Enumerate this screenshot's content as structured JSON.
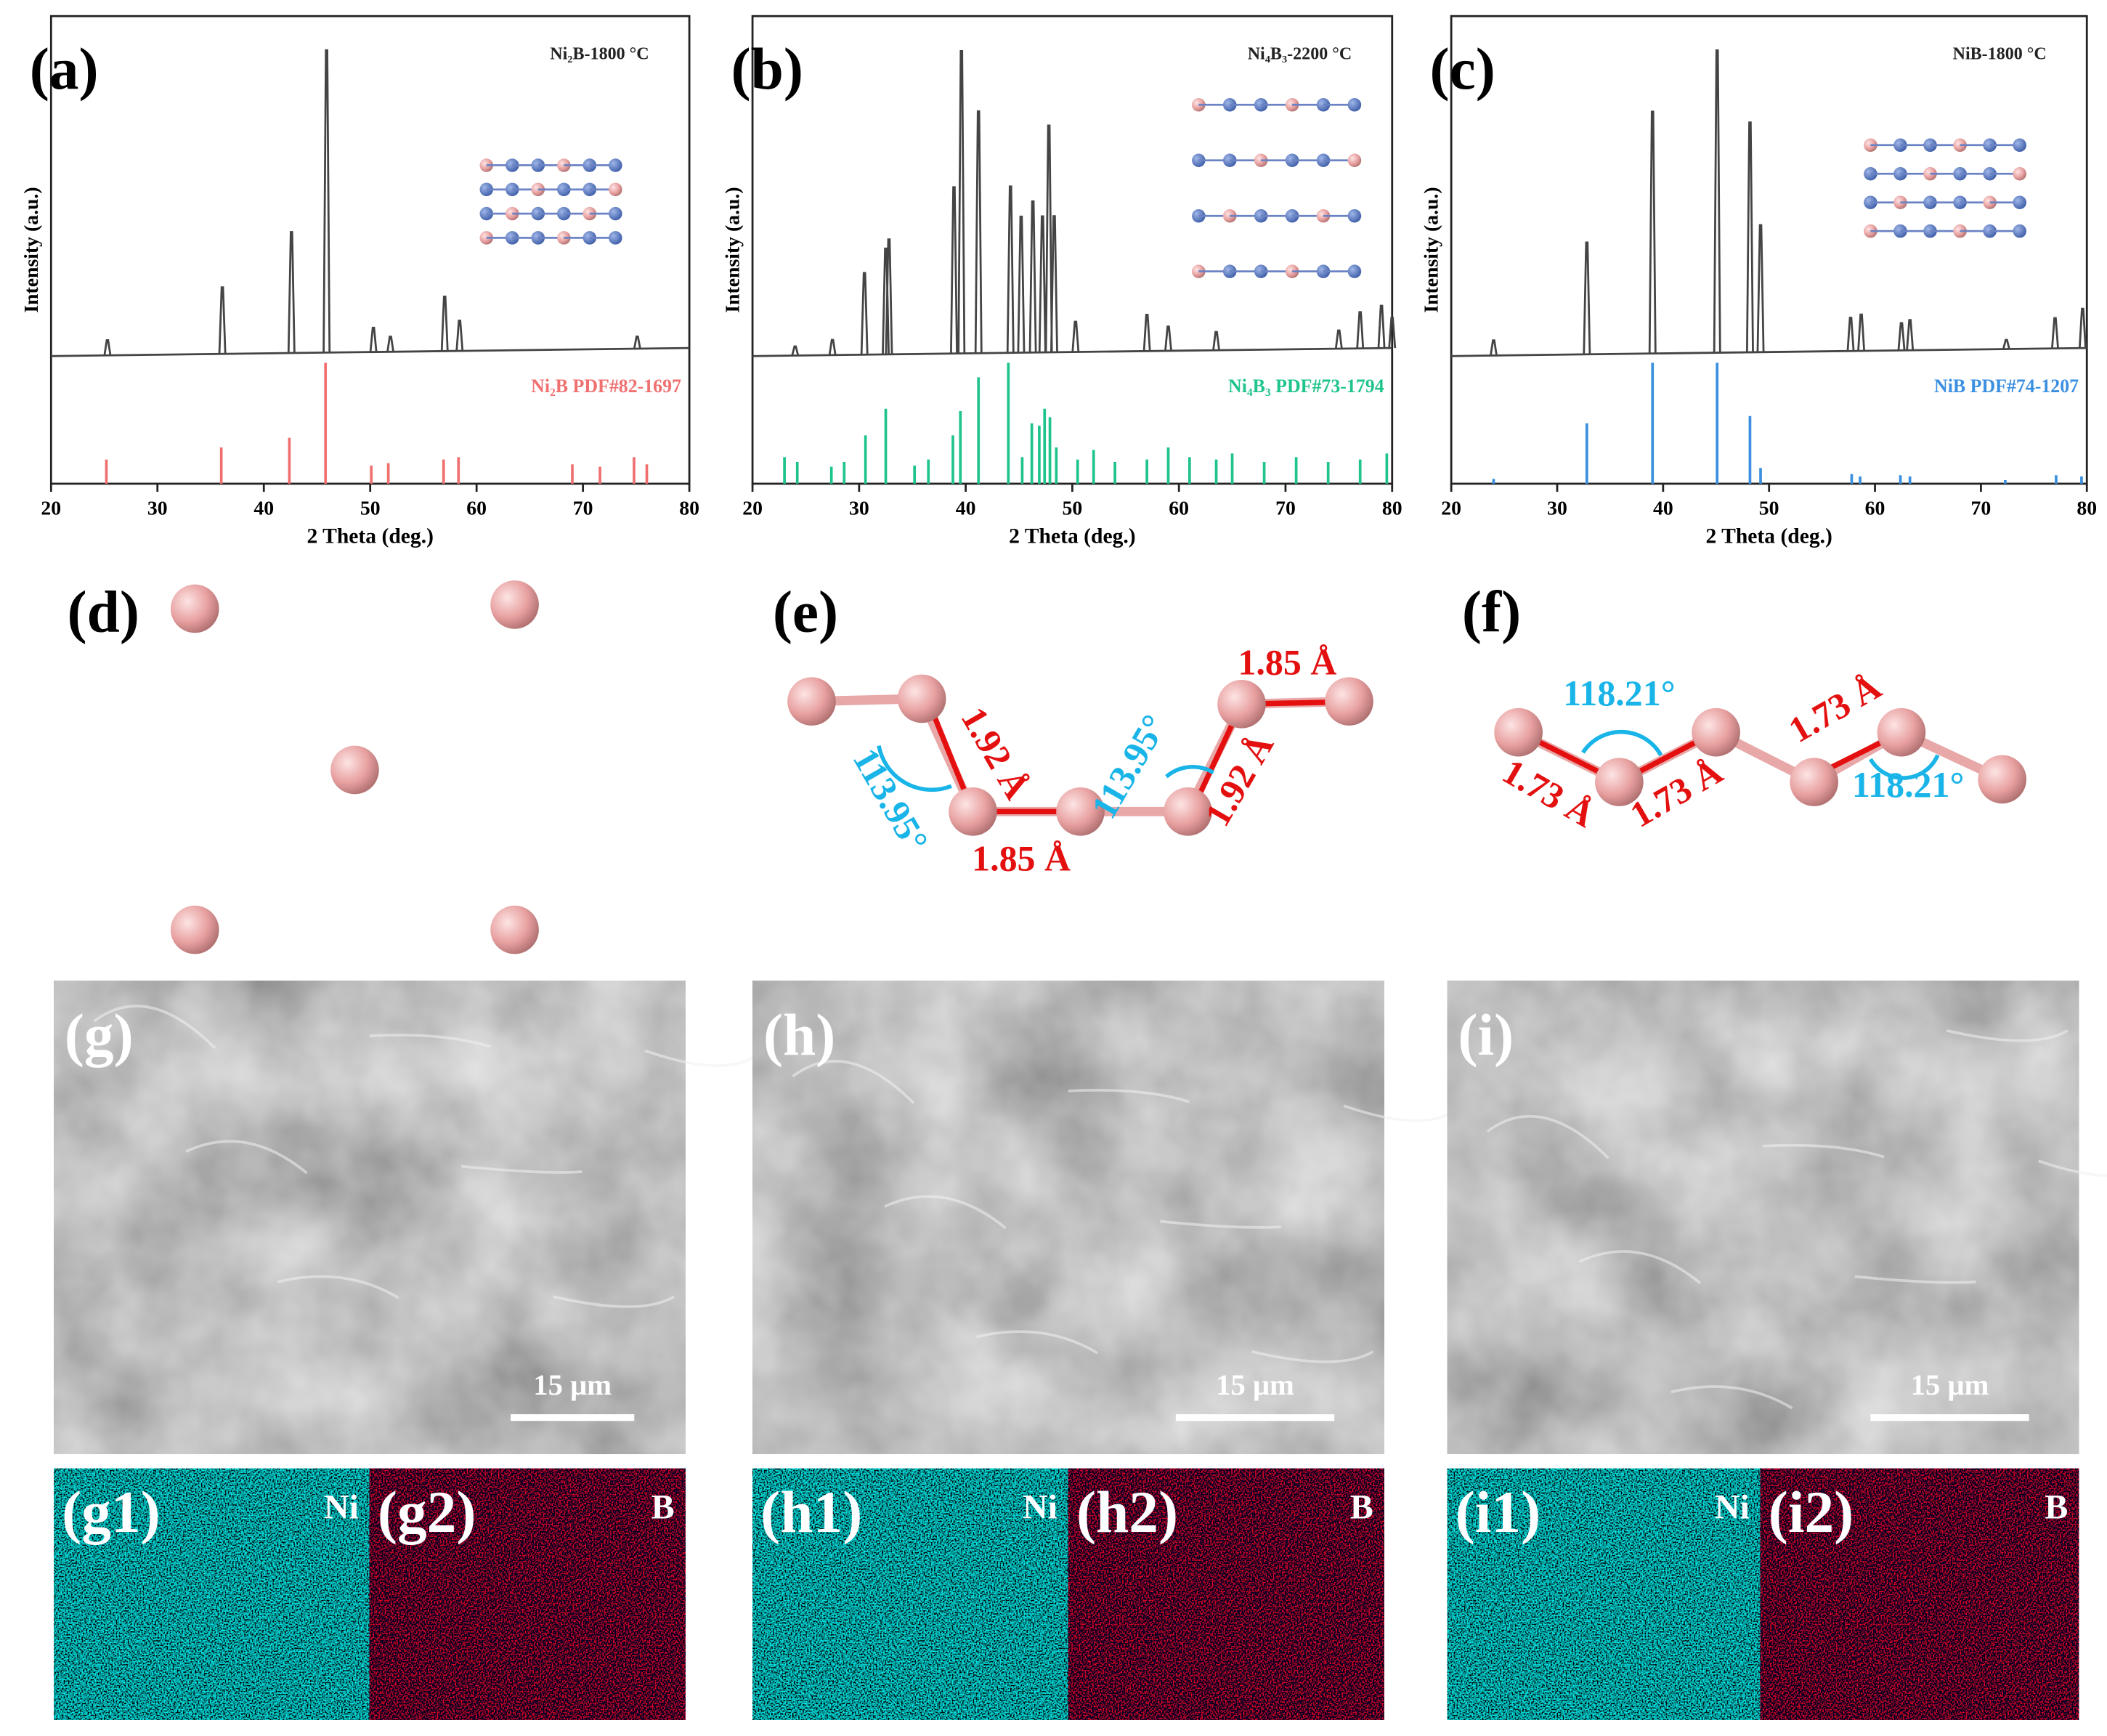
{
  "chart_data": [
    {
      "type": "xrd",
      "panel_label": "(a)",
      "x_label": "2 Theta (deg.)",
      "y_label": "Intensity (a.u.)",
      "xlim": [
        20,
        80
      ],
      "xticks": [
        20,
        30,
        40,
        50,
        60,
        70,
        80
      ],
      "ylim": [
        0,
        100
      ],
      "series": [
        {
          "name": "Ni₂B-1800 °C",
          "color": "#444444",
          "x": [
            25.3,
            36.1,
            42.6,
            45.9,
            50.3,
            51.9,
            57.0,
            58.4,
            75.1
          ],
          "values": [
            5,
            22,
            40,
            100,
            8,
            5,
            18,
            10,
            4
          ]
        },
        {
          "name": "Ni₂B  PDF#82-1697",
          "color": "#f07070",
          "x": [
            25.2,
            36.0,
            42.4,
            45.8,
            50.1,
            51.7,
            56.9,
            58.3,
            69.0,
            71.6,
            74.8,
            76.0
          ],
          "values": [
            20,
            30,
            38,
            100,
            15,
            17,
            20,
            22,
            16,
            14,
            22,
            16
          ]
        }
      ]
    },
    {
      "type": "xrd",
      "panel_label": "(b)",
      "x_label": "2 Theta (deg.)",
      "y_label": "Intensity (a.u.)",
      "xlim": [
        20,
        80
      ],
      "xticks": [
        20,
        30,
        40,
        50,
        60,
        70,
        80
      ],
      "ylim": [
        0,
        100
      ],
      "series": [
        {
          "name": "Ni₄B₃-2200 °C",
          "color": "#444444",
          "x": [
            24.0,
            27.5,
            30.5,
            32.5,
            32.8,
            38.9,
            39.6,
            41.2,
            44.2,
            45.2,
            46.3,
            47.2,
            47.8,
            48.3,
            50.3,
            57.0,
            59.0,
            63.5,
            75.0,
            77.0,
            79.0,
            80.0
          ],
          "values": [
            3,
            5,
            27,
            35,
            38,
            55,
            100,
            80,
            55,
            45,
            50,
            45,
            75,
            45,
            10,
            12,
            8,
            6,
            6,
            12,
            14,
            10
          ]
        },
        {
          "name": "Ni₄B₃  PDF#73-1794",
          "color": "#1fc48a",
          "x": [
            23.0,
            24.2,
            27.4,
            28.6,
            30.6,
            32.5,
            35.2,
            36.5,
            38.8,
            39.5,
            41.2,
            44.0,
            45.3,
            46.2,
            46.9,
            47.4,
            47.9,
            48.5,
            50.5,
            52.0,
            54.0,
            57.0,
            59.0,
            61.0,
            63.5,
            65.0,
            68.0,
            71.0,
            74.0,
            77.0,
            79.5
          ],
          "values": [
            22,
            18,
            14,
            18,
            40,
            62,
            15,
            20,
            40,
            60,
            88,
            100,
            22,
            50,
            48,
            62,
            55,
            30,
            20,
            28,
            18,
            20,
            30,
            22,
            20,
            25,
            18,
            22,
            18,
            20,
            25
          ]
        }
      ]
    },
    {
      "type": "xrd",
      "panel_label": "(c)",
      "x_label": "2 Theta (deg.)",
      "y_label": "Intensity (a.u.)",
      "xlim": [
        20,
        80
      ],
      "xticks": [
        20,
        30,
        40,
        50,
        60,
        70,
        80
      ],
      "ylim": [
        0,
        100
      ],
      "series": [
        {
          "name": "NiB-1800 °C",
          "color": "#444444",
          "x": [
            24.0,
            32.8,
            39.0,
            45.1,
            48.2,
            49.2,
            57.7,
            58.7,
            62.5,
            63.3,
            72.4,
            77.0,
            79.6
          ],
          "values": [
            5,
            37,
            80,
            100,
            76,
            42,
            11,
            12,
            9,
            10,
            3,
            10,
            13
          ]
        },
        {
          "name": "NiB  PDF#74-1207",
          "color": "#3a8fe0",
          "x": [
            24.0,
            32.8,
            39.0,
            45.1,
            48.2,
            49.2,
            57.8,
            58.6,
            62.4,
            63.3,
            72.3,
            77.1,
            79.5
          ],
          "values": [
            4,
            50,
            100,
            100,
            56,
            13,
            8,
            6,
            7,
            6,
            3,
            7,
            6
          ]
        }
      ]
    }
  ],
  "structures": {
    "d": {
      "label": "(d)"
    },
    "e": {
      "label": "(e)",
      "annotations": [
        "1.92 Å",
        "113.95°",
        "1.85 Å",
        "113.95°",
        "1.92 Å",
        "1.85 Å"
      ]
    },
    "f": {
      "label": "(f)",
      "annotations": [
        "118.21°",
        "1.73 Å",
        "1.73 Å",
        "1.73 Å",
        "118.21°"
      ]
    }
  },
  "sem": [
    {
      "label": "(g)",
      "scale_bar": "15 μm"
    },
    {
      "label": "(h)",
      "scale_bar": "15 μm"
    },
    {
      "label": "(i)",
      "scale_bar": "15 μm"
    }
  ],
  "eds": [
    {
      "label": "(g1)",
      "element": "Ni"
    },
    {
      "label": "(g2)",
      "element": "B"
    },
    {
      "label": "(h1)",
      "element": "Ni"
    },
    {
      "label": "(h2)",
      "element": "B"
    },
    {
      "label": "(i1)",
      "element": "Ni"
    },
    {
      "label": "(i2)",
      "element": "B"
    }
  ]
}
